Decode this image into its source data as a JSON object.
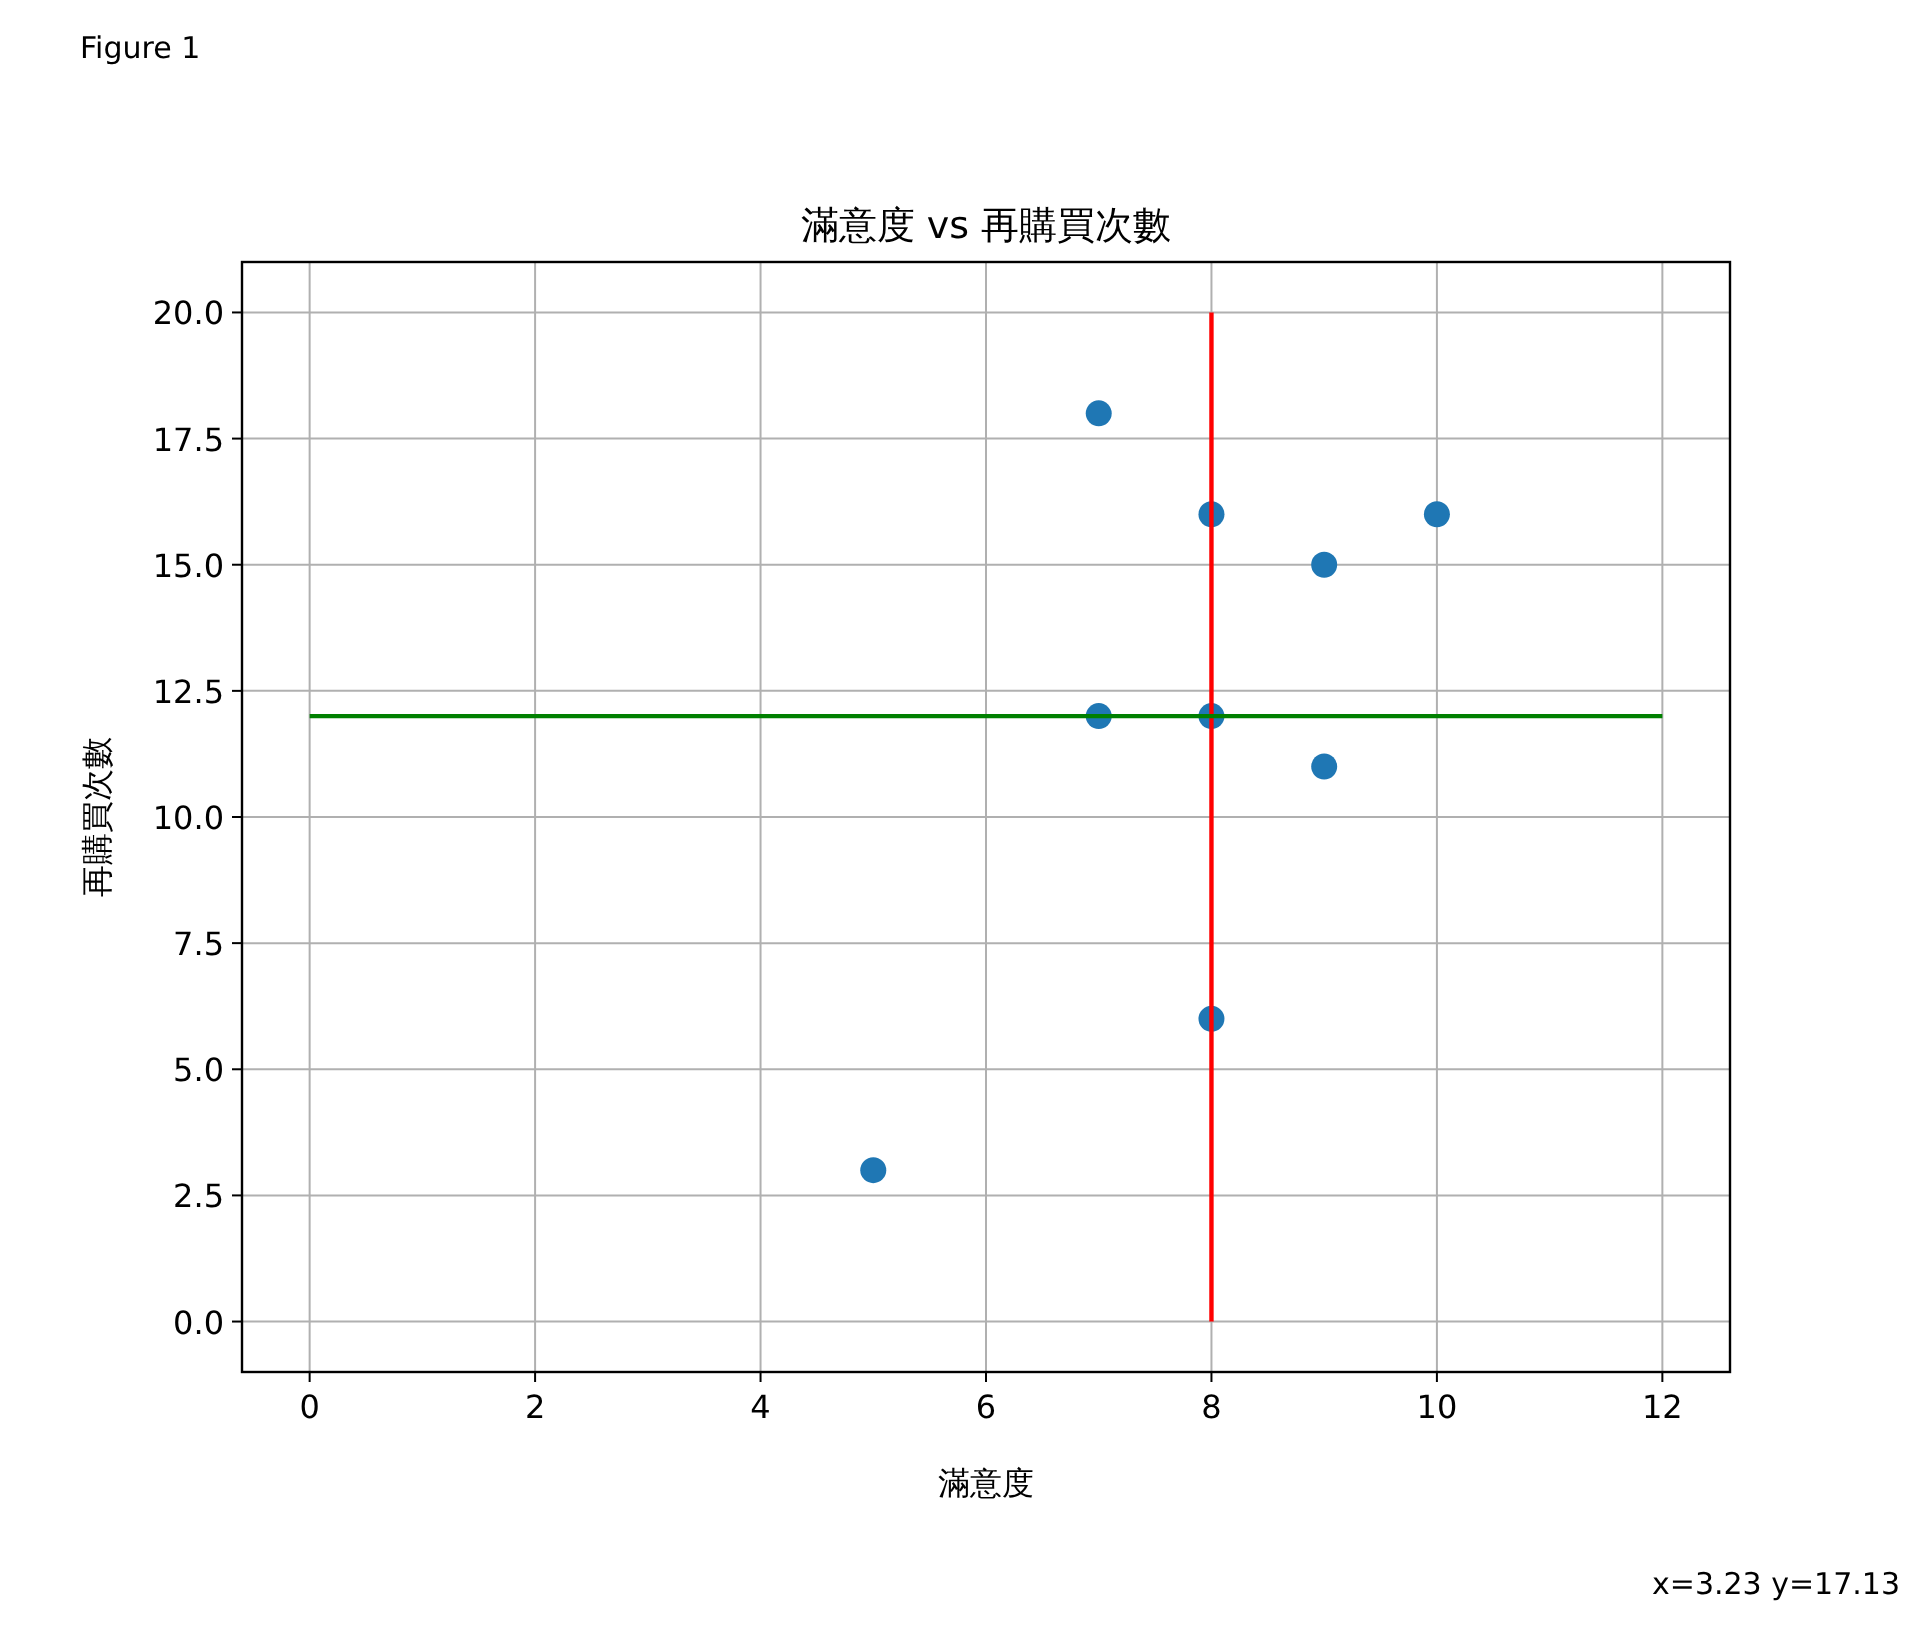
{
  "chart_data": {
    "type": "scatter",
    "title": "滿意度 vs 再購買次數",
    "xlabel": "滿意度",
    "ylabel": "再購買次數",
    "annotations": [
      "Figure 1",
      "x=3.23 y=17.13"
    ],
    "xlim": [
      -0.6,
      12.6
    ],
    "ylim": [
      -1,
      21
    ],
    "xticks": [
      0,
      2,
      4,
      6,
      8,
      10,
      12
    ],
    "yticks": [
      {
        "value": 0,
        "label": "0.0"
      },
      {
        "value": 2.5,
        "label": "2.5"
      },
      {
        "value": 5,
        "label": "5.0"
      },
      {
        "value": 7.5,
        "label": "7.5"
      },
      {
        "value": 10,
        "label": "10.0"
      },
      {
        "value": 12.5,
        "label": "12.5"
      },
      {
        "value": 15,
        "label": "15.0"
      },
      {
        "value": 17.5,
        "label": "17.5"
      },
      {
        "value": 20,
        "label": "20.0"
      }
    ],
    "grid": true,
    "series": [
      {
        "marker": "circle",
        "color": "#1f77b4",
        "x": [
          5,
          7,
          7,
          8,
          8,
          8,
          9,
          9,
          10
        ],
        "values": [
          3,
          18,
          12,
          16,
          12,
          6,
          15,
          11,
          16
        ]
      },
      {
        "type": "line",
        "marker": "none",
        "color": "#ff0000",
        "x": [
          8,
          8
        ],
        "values": [
          0,
          20
        ]
      },
      {
        "type": "line",
        "marker": "none",
        "color": "#008000",
        "x": [
          0,
          12
        ],
        "values": [
          12,
          12
        ]
      }
    ]
  }
}
